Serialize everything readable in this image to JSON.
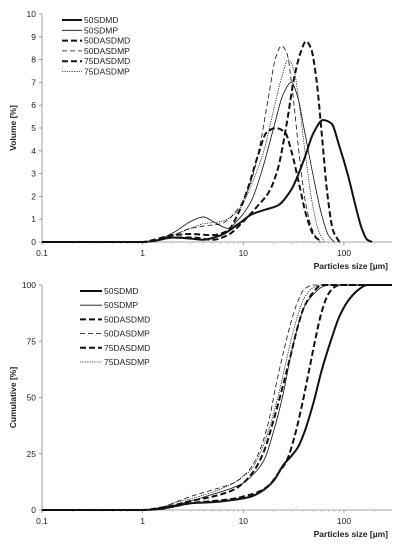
{
  "chart_data": [
    {
      "type": "line",
      "ylabel": "Volume [%]",
      "xlabel": "Particles size [µm]",
      "x_scale": "log",
      "xlim": [
        0.1,
        300
      ],
      "ylim": [
        0,
        10
      ],
      "x_ticks": [
        0.1,
        1,
        10,
        100
      ],
      "x_tick_labels": [
        "0.1",
        "1",
        "10",
        "100"
      ],
      "y_ticks": [
        0,
        1,
        2,
        3,
        4,
        5,
        6,
        7,
        8,
        9,
        10
      ],
      "y_tick_labels": [
        "0",
        "1",
        "2",
        "3",
        "4",
        "5",
        "6",
        "7",
        "8",
        "9",
        "10"
      ],
      "grid": false,
      "legend_position": "top-left",
      "series": [
        {
          "name": "50SDMD",
          "style": "thick-solid",
          "points": [
            [
              0.1,
              0
            ],
            [
              1,
              0
            ],
            [
              1.3,
              0.05
            ],
            [
              2,
              0.2
            ],
            [
              3,
              0.15
            ],
            [
              4,
              0.1
            ],
            [
              6,
              0.3
            ],
            [
              9,
              0.8
            ],
            [
              12,
              1.2
            ],
            [
              16,
              1.4
            ],
            [
              22,
              1.6
            ],
            [
              30,
              2.3
            ],
            [
              40,
              3.6
            ],
            [
              50,
              4.8
            ],
            [
              62,
              5.35
            ],
            [
              75,
              5.2
            ],
            [
              90,
              4.2
            ],
            [
              110,
              2.9
            ],
            [
              130,
              1.6
            ],
            [
              150,
              0.6
            ],
            [
              170,
              0.1
            ],
            [
              190,
              0
            ]
          ]
        },
        {
          "name": "50SDMP",
          "style": "thin-solid",
          "points": [
            [
              0.1,
              0
            ],
            [
              1,
              0
            ],
            [
              1.3,
              0.05
            ],
            [
              2,
              0.4
            ],
            [
              3,
              0.9
            ],
            [
              4,
              1.1
            ],
            [
              5,
              0.9
            ],
            [
              7,
              0.6
            ],
            [
              9,
              1.0
            ],
            [
              12,
              1.8
            ],
            [
              15,
              3.0
            ],
            [
              20,
              5.0
            ],
            [
              25,
              6.5
            ],
            [
              30,
              7.0
            ],
            [
              35,
              6.3
            ],
            [
              40,
              5.0
            ],
            [
              50,
              2.8
            ],
            [
              60,
              1.2
            ],
            [
              70,
              0.3
            ],
            [
              80,
              0
            ]
          ]
        },
        {
          "name": "50DASDMD",
          "style": "thick-dash",
          "points": [
            [
              0.1,
              0
            ],
            [
              1,
              0
            ],
            [
              1.3,
              0.1
            ],
            [
              2,
              0.3
            ],
            [
              3,
              0.35
            ],
            [
              5,
              0.3
            ],
            [
              7,
              0.5
            ],
            [
              9,
              1.3
            ],
            [
              11,
              2.3
            ],
            [
              14,
              3.8
            ],
            [
              17,
              4.8
            ],
            [
              21,
              5.0
            ],
            [
              26,
              4.8
            ],
            [
              30,
              4.0
            ],
            [
              36,
              2.5
            ],
            [
              42,
              1.2
            ],
            [
              50,
              0.3
            ],
            [
              60,
              0
            ]
          ]
        },
        {
          "name": "50DASDMP",
          "style": "thin-dash",
          "points": [
            [
              0.1,
              0
            ],
            [
              1,
              0
            ],
            [
              1.3,
              0.05
            ],
            [
              2,
              0.3
            ],
            [
              3,
              0.6
            ],
            [
              4,
              0.7
            ],
            [
              6,
              0.8
            ],
            [
              9,
              1.5
            ],
            [
              12,
              2.7
            ],
            [
              15,
              4.5
            ],
            [
              18,
              6.5
            ],
            [
              21,
              8.1
            ],
            [
              24,
              8.6
            ],
            [
              27,
              8.3
            ],
            [
              31,
              6.5
            ],
            [
              36,
              3.8
            ],
            [
              42,
              1.6
            ],
            [
              50,
              0.4
            ],
            [
              58,
              0
            ]
          ]
        },
        {
          "name": "75DASDMD",
          "style": "thick-dash",
          "points": [
            [
              0.1,
              0
            ],
            [
              1,
              0
            ],
            [
              1.3,
              0.05
            ],
            [
              2,
              0.2
            ],
            [
              3,
              0.2
            ],
            [
              5,
              0.1
            ],
            [
              7,
              0.3
            ],
            [
              10,
              0.9
            ],
            [
              14,
              1.6
            ],
            [
              18,
              2.2
            ],
            [
              22,
              3.2
            ],
            [
              27,
              5.2
            ],
            [
              32,
              7.2
            ],
            [
              37,
              8.3
            ],
            [
              42,
              8.8
            ],
            [
              47,
              8.5
            ],
            [
              53,
              7.2
            ],
            [
              60,
              4.8
            ],
            [
              68,
              2.2
            ],
            [
              78,
              0.5
            ],
            [
              90,
              0
            ]
          ]
        },
        {
          "name": "75DASDMP",
          "style": "dotted",
          "points": [
            [
              0.1,
              0
            ],
            [
              1,
              0
            ],
            [
              1.3,
              0.05
            ],
            [
              2,
              0.3
            ],
            [
              3,
              0.6
            ],
            [
              4,
              0.8
            ],
            [
              6,
              0.9
            ],
            [
              9,
              1.4
            ],
            [
              12,
              2.5
            ],
            [
              16,
              4.0
            ],
            [
              20,
              5.8
            ],
            [
              24,
              7.2
            ],
            [
              28,
              8.0
            ],
            [
              32,
              7.5
            ],
            [
              36,
              6.0
            ],
            [
              42,
              3.6
            ],
            [
              48,
              1.8
            ],
            [
              56,
              0.5
            ],
            [
              64,
              0
            ]
          ]
        }
      ]
    },
    {
      "type": "line",
      "ylabel": "Cumulative [%]",
      "xlabel": "Particles size [µm]",
      "x_scale": "log",
      "xlim": [
        0.1,
        300
      ],
      "ylim": [
        0,
        100
      ],
      "x_ticks": [
        0.1,
        1,
        10,
        100
      ],
      "x_tick_labels": [
        "0.1",
        "1",
        "10",
        "100"
      ],
      "y_ticks": [
        0,
        25,
        50,
        75,
        100
      ],
      "y_tick_labels": [
        "0",
        "25",
        "50",
        "75",
        "100"
      ],
      "grid": false,
      "legend_position": "top-left",
      "series": [
        {
          "name": "50SDMD",
          "style": "thick-solid",
          "points": [
            [
              0.1,
              0
            ],
            [
              1,
              0
            ],
            [
              1.5,
              0.5
            ],
            [
              2,
              1.5
            ],
            [
              3,
              3
            ],
            [
              5,
              3.5
            ],
            [
              8,
              4.5
            ],
            [
              12,
              6
            ],
            [
              16,
              9
            ],
            [
              20,
              13
            ],
            [
              25,
              20
            ],
            [
              30,
              24
            ],
            [
              35,
              28
            ],
            [
              40,
              34
            ],
            [
              50,
              48
            ],
            [
              60,
              62
            ],
            [
              75,
              76
            ],
            [
              90,
              86
            ],
            [
              110,
              93
            ],
            [
              140,
              98
            ],
            [
              170,
              100
            ],
            [
              300,
              100
            ]
          ]
        },
        {
          "name": "50SDMP",
          "style": "thin-solid",
          "points": [
            [
              0.1,
              0
            ],
            [
              1,
              0
            ],
            [
              1.5,
              1
            ],
            [
              2,
              2
            ],
            [
              3,
              4
            ],
            [
              5,
              7
            ],
            [
              8,
              10
            ],
            [
              10,
              12
            ],
            [
              12,
              15
            ],
            [
              16,
              22
            ],
            [
              20,
              35
            ],
            [
              25,
              52
            ],
            [
              30,
              70
            ],
            [
              35,
              82
            ],
            [
              40,
              90
            ],
            [
              50,
              96
            ],
            [
              60,
              99
            ],
            [
              70,
              100
            ],
            [
              300,
              100
            ]
          ]
        },
        {
          "name": "50DASDMD",
          "style": "thick-dash",
          "points": [
            [
              0.1,
              0
            ],
            [
              1,
              0
            ],
            [
              1.5,
              1
            ],
            [
              2,
              2
            ],
            [
              3,
              4
            ],
            [
              5,
              6
            ],
            [
              8,
              9
            ],
            [
              10,
              12
            ],
            [
              13,
              18
            ],
            [
              16,
              26
            ],
            [
              20,
              40
            ],
            [
              25,
              56
            ],
            [
              30,
              70
            ],
            [
              35,
              82
            ],
            [
              40,
              90
            ],
            [
              50,
              97
            ],
            [
              60,
              100
            ],
            [
              300,
              100
            ]
          ]
        },
        {
          "name": "50DASDMP",
          "style": "thin-dash",
          "points": [
            [
              0.1,
              0
            ],
            [
              1,
              0
            ],
            [
              1.5,
              1
            ],
            [
              2,
              3
            ],
            [
              3,
              6
            ],
            [
              5,
              9
            ],
            [
              8,
              12
            ],
            [
              10,
              15
            ],
            [
              12,
              19
            ],
            [
              15,
              28
            ],
            [
              18,
              40
            ],
            [
              21,
              55
            ],
            [
              25,
              70
            ],
            [
              30,
              84
            ],
            [
              35,
              93
            ],
            [
              40,
              98
            ],
            [
              50,
              100
            ],
            [
              300,
              100
            ]
          ]
        },
        {
          "name": "75DASDMD",
          "style": "thick-dash",
          "points": [
            [
              0.1,
              0
            ],
            [
              1,
              0
            ],
            [
              1.5,
              0.5
            ],
            [
              2,
              1.5
            ],
            [
              3,
              3
            ],
            [
              5,
              4
            ],
            [
              8,
              5
            ],
            [
              10,
              6
            ],
            [
              14,
              8
            ],
            [
              18,
              11
            ],
            [
              22,
              16
            ],
            [
              27,
              22
            ],
            [
              32,
              32
            ],
            [
              38,
              46
            ],
            [
              45,
              62
            ],
            [
              52,
              76
            ],
            [
              60,
              88
            ],
            [
              70,
              96
            ],
            [
              80,
              99
            ],
            [
              90,
              100
            ],
            [
              300,
              100
            ]
          ]
        },
        {
          "name": "75DASDMP",
          "style": "dotted",
          "points": [
            [
              0.1,
              0
            ],
            [
              1,
              0
            ],
            [
              1.5,
              1
            ],
            [
              2,
              3
            ],
            [
              3,
              5
            ],
            [
              5,
              8
            ],
            [
              8,
              12
            ],
            [
              10,
              15
            ],
            [
              12,
              18
            ],
            [
              15,
              26
            ],
            [
              18,
              36
            ],
            [
              22,
              50
            ],
            [
              26,
              64
            ],
            [
              30,
              76
            ],
            [
              35,
              87
            ],
            [
              40,
              94
            ],
            [
              50,
              99
            ],
            [
              60,
              100
            ],
            [
              300,
              100
            ]
          ]
        }
      ]
    }
  ]
}
